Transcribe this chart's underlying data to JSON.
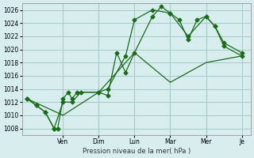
{
  "title": "",
  "xlabel": "Pression niveau de la mer( hPa )",
  "ylabel": "",
  "bg_color": "#d8eeee",
  "grid_color": "#aacccc",
  "line_color": "#1a6b1a",
  "ylim": [
    1007,
    1027
  ],
  "yticks": [
    1008,
    1010,
    1012,
    1014,
    1016,
    1018,
    1020,
    1022,
    1024,
    1026
  ],
  "day_labels": [
    "Ven",
    "Dim",
    "Lun",
    "Mar",
    "Mer",
    "Je"
  ],
  "day_positions": [
    2.0,
    4.0,
    6.0,
    8.0,
    10.0,
    12.0
  ],
  "line1_x": [
    0,
    0.5,
    1.0,
    1.5,
    1.7,
    2.0,
    2.3,
    2.5,
    2.8,
    4.0,
    4.5,
    5.0,
    5.5,
    6.0,
    7.0,
    7.5,
    8.0,
    8.5,
    9.0,
    9.5,
    10.0,
    10.5,
    11.0,
    12.0
  ],
  "line1_y": [
    1012.5,
    1011.5,
    1010.5,
    1008.0,
    1008.0,
    1012.5,
    1013.5,
    1012.5,
    1013.5,
    1013.5,
    1013.0,
    1019.5,
    1016.5,
    1019.5,
    1025.0,
    1026.5,
    1025.5,
    1024.5,
    1021.5,
    1024.5,
    1025.0,
    1023.5,
    1021.0,
    1019.5
  ],
  "line2_x": [
    0,
    0.5,
    1.0,
    1.5,
    2.0,
    2.5,
    3.0,
    4.0,
    4.5,
    5.5,
    6.0,
    7.0,
    8.0,
    9.0,
    10.0,
    10.5,
    11.0,
    12.0
  ],
  "line2_y": [
    1012.5,
    1011.5,
    1010.5,
    1008.0,
    1012.0,
    1012.0,
    1013.5,
    1013.5,
    1014.0,
    1019.0,
    1024.5,
    1026.0,
    1025.5,
    1022.0,
    1025.0,
    1023.5,
    1020.5,
    1019.0
  ],
  "line3_x": [
    0,
    2.0,
    4.0,
    6.0,
    8.0,
    10.0,
    12.0
  ],
  "line3_y": [
    1012.5,
    1010.0,
    1013.5,
    1019.5,
    1015.0,
    1018.0,
    1019.0
  ]
}
